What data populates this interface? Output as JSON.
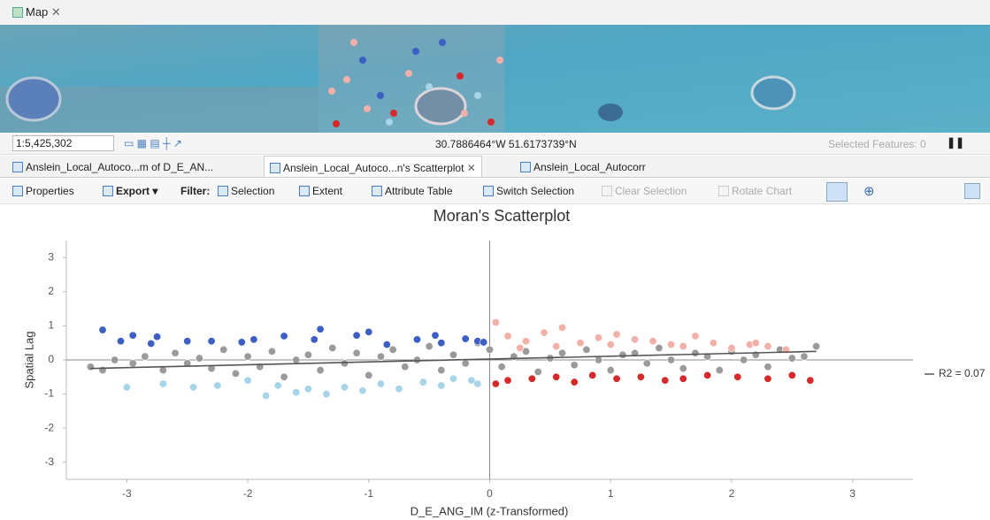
{
  "map_tab": "Map",
  "scale": "1:5,425,302",
  "coordinates": "30.7886464°W 51.6173739°N",
  "selected_features": "Selected Features: 0",
  "tabs": [
    "Anslein_Local_Autoco...m of D_E_AN...",
    "Anslein_Local_Autoco...n's Scatterplot",
    "Anslein_Local_Autocorr"
  ],
  "toolbar": {
    "properties": "Properties",
    "export": "Export",
    "filter": "Filter:",
    "selection": "Selection",
    "extent": "Extent",
    "attribute_table": "Attribute Table",
    "switch_selection": "Switch Selection",
    "clear_selection": "Clear Selection",
    "rotate_chart": "Rotate Chart"
  },
  "chart_data": {
    "type": "scatter",
    "title": "Moran's Scatterplot",
    "x_label": "D_E_ANG_IM (z-Transformed)",
    "y_label": "Spatial Lag",
    "xlim": [
      -3.5,
      3.5
    ],
    "ylim": [
      -3.5,
      3.5
    ],
    "xticks": [
      -3,
      -2,
      -1,
      0,
      1,
      2,
      3
    ],
    "yticks": [
      -3,
      -2,
      -1,
      0,
      1,
      2,
      3
    ],
    "grid": false,
    "series": [
      {
        "color": "#9a9a9a",
        "x": [
          -3.3,
          -3.2,
          -3.1,
          -2.95,
          -2.85,
          -2.7,
          -2.6,
          -2.5,
          -2.4,
          -2.3,
          -2.2,
          -2.1,
          -2.0,
          -1.9,
          -1.8,
          -1.7,
          -1.6,
          -1.5,
          -1.4,
          -1.3,
          -1.2,
          -1.1,
          -1.0,
          -0.9,
          -0.8,
          -0.7,
          -0.6,
          -0.5,
          -0.4,
          -0.3,
          -0.2,
          -0.1,
          0.0,
          0.1,
          0.2,
          0.3,
          0.4,
          0.5,
          0.6,
          0.7,
          0.8,
          0.9,
          1.0,
          1.1,
          1.2,
          1.3,
          1.4,
          1.5,
          1.6,
          1.7,
          1.8,
          1.9,
          2.0,
          2.1,
          2.2,
          2.3,
          2.4,
          2.5,
          2.6,
          2.7
        ],
        "values": [
          -0.2,
          -0.3,
          0.0,
          -0.1,
          0.1,
          -0.3,
          0.2,
          -0.1,
          0.05,
          -0.25,
          0.3,
          -0.4,
          0.1,
          -0.2,
          0.25,
          -0.5,
          0.0,
          0.15,
          -0.3,
          0.35,
          -0.1,
          0.2,
          -0.45,
          0.1,
          0.3,
          -0.2,
          0.0,
          0.4,
          -0.3,
          0.15,
          -0.1,
          0.5,
          0.3,
          -0.2,
          0.1,
          0.25,
          -0.35,
          0.05,
          0.2,
          -0.15,
          0.3,
          0.0,
          -0.3,
          0.15,
          0.2,
          -0.1,
          0.35,
          0.0,
          -0.25,
          0.2,
          0.1,
          -0.3,
          0.25,
          0.0,
          0.15,
          -0.2,
          0.3,
          0.05,
          0.1,
          0.4
        ]
      },
      {
        "color": "#3d5fc4",
        "x": [
          -3.2,
          -3.05,
          -2.95,
          -2.8,
          -2.75,
          -2.5,
          -2.3,
          -2.05,
          -1.95,
          -1.7,
          -1.4,
          -1.45,
          -1.1,
          -1.0,
          -0.85,
          -0.6,
          -0.45,
          -0.4,
          -0.2,
          -0.1,
          -0.05
        ],
        "values": [
          0.88,
          0.55,
          0.72,
          0.48,
          0.68,
          0.55,
          0.55,
          0.52,
          0.6,
          0.7,
          0.9,
          0.6,
          0.72,
          0.82,
          0.45,
          0.6,
          0.72,
          0.5,
          0.62,
          0.55,
          0.52
        ]
      },
      {
        "color": "#a6d4e8",
        "x": [
          -3.0,
          -2.7,
          -2.45,
          -2.25,
          -2.0,
          -1.85,
          -1.75,
          -1.6,
          -1.5,
          -1.35,
          -1.2,
          -1.05,
          -0.9,
          -0.75,
          -0.55,
          -0.4,
          -0.3,
          -0.15,
          -0.1
        ],
        "values": [
          -0.8,
          -0.7,
          -0.8,
          -0.75,
          -0.6,
          -1.05,
          -0.75,
          -0.95,
          -0.85,
          -1.0,
          -0.8,
          -0.9,
          -0.7,
          -0.85,
          -0.65,
          -0.75,
          -0.55,
          -0.6,
          -0.7
        ]
      },
      {
        "color": "#f2b0a8",
        "x": [
          0.05,
          0.15,
          0.3,
          0.45,
          0.6,
          0.75,
          0.9,
          1.05,
          1.2,
          1.35,
          1.5,
          1.7,
          1.85,
          2.0,
          2.15,
          2.3,
          2.45,
          0.25,
          0.55,
          1.0,
          1.6,
          2.2
        ],
        "values": [
          1.1,
          0.7,
          0.55,
          0.8,
          0.95,
          0.5,
          0.65,
          0.75,
          0.6,
          0.55,
          0.45,
          0.7,
          0.5,
          0.35,
          0.45,
          0.4,
          0.3,
          0.35,
          0.4,
          0.45,
          0.4,
          0.5
        ]
      },
      {
        "color": "#d42a2a",
        "x": [
          0.05,
          0.15,
          0.35,
          0.55,
          0.7,
          0.85,
          1.05,
          1.25,
          1.45,
          1.6,
          1.8,
          2.05,
          2.3,
          2.5,
          2.65
        ],
        "values": [
          -0.7,
          -0.6,
          -0.55,
          -0.5,
          -0.65,
          -0.45,
          -0.55,
          -0.5,
          -0.6,
          -0.55,
          -0.45,
          -0.5,
          -0.55,
          -0.45,
          -0.6
        ]
      }
    ],
    "trend_line": {
      "name": "R2 = 0.07",
      "color": "#555555",
      "x": [
        -3.3,
        2.7
      ],
      "values": [
        -0.25,
        0.25
      ]
    }
  }
}
